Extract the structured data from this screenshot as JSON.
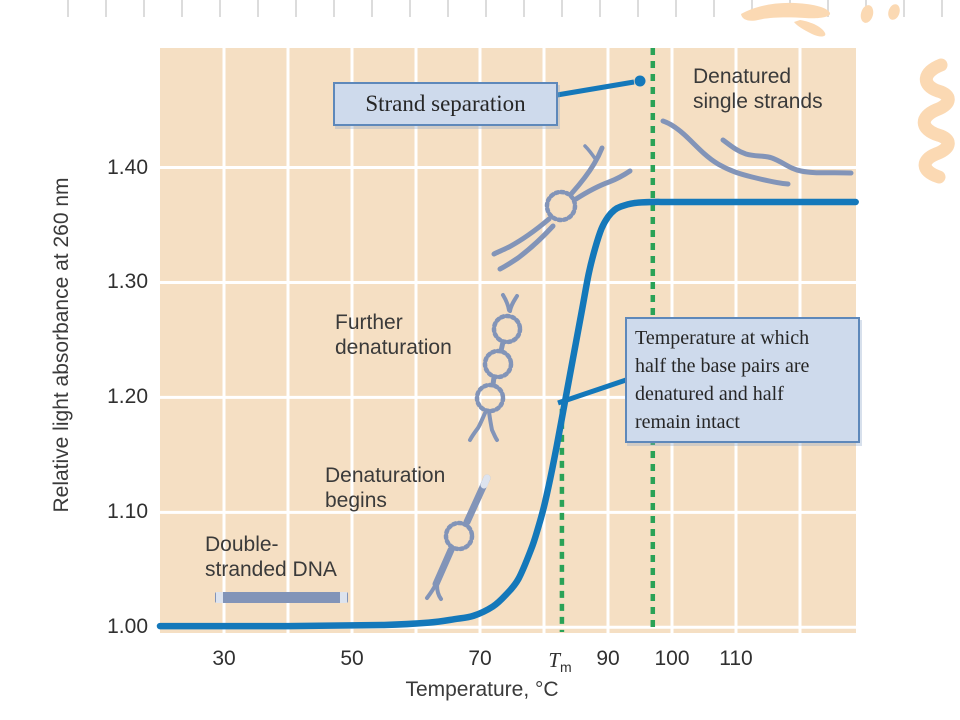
{
  "figure": {
    "y_axis": {
      "label": "Relative light absorbance at 260 nm",
      "ticks": [
        "1.40",
        "1.30",
        "1.20",
        "1.10",
        "1.00"
      ]
    },
    "x_axis": {
      "label": "Temperature, °C",
      "ticks": [
        "30",
        "50",
        "70",
        "90",
        "100",
        "110"
      ],
      "tm_tick": {
        "base": "T",
        "sub": "m"
      }
    },
    "labels": {
      "double_stranded_dna": "Double-\nstranded DNA",
      "denaturation_begins": "Denaturation\nbegins",
      "further_denaturation": "Further\ndenaturation",
      "denatured_single_strands": "Denatured\nsingle strands"
    },
    "callouts": {
      "strand_separation": "Strand separation",
      "tm_explanation": "Temperature at which\nhalf the base pairs are\ndenatured and half\nremain intact"
    }
  },
  "colors": {
    "curve": "#1478ba",
    "green": "#2aa257",
    "beige": "#f5dfc3",
    "boxbg": "#cedaec",
    "boxborder": "#5e88ba",
    "mol": "#8294b8",
    "mollight": "#dde3ee",
    "wm": "#fbd9b3",
    "labeltext": "#3a3a3a",
    "ticktext": "#303030",
    "serif": "#262626"
  },
  "chart_data": {
    "type": "line",
    "xlabel": "Temperature, °C",
    "ylabel": "Relative light absorbance at 260 nm",
    "x_ticks": [
      30,
      50,
      70,
      90,
      100,
      110
    ],
    "tm_tick_x": 82.5,
    "y_ticks": [
      1.0,
      1.1,
      1.2,
      1.3,
      1.4
    ],
    "xlim": [
      20,
      128.75
    ],
    "ylim": [
      0.995,
      1.504
    ],
    "grid": true,
    "baseline_value": 1.0,
    "plateau_value": 1.37,
    "series": [
      {
        "name": "Relative light absorbance at 260 nm",
        "x": [
          20,
          40,
          55,
          62,
          66,
          69,
          72,
          74,
          76,
          78,
          79,
          80,
          81,
          82,
          83,
          84,
          85,
          86,
          87,
          88,
          89,
          90,
          91,
          92,
          94,
          97,
          100,
          110,
          128.7
        ],
        "y": [
          1.001,
          1.001,
          1.002,
          1.004,
          1.007,
          1.01,
          1.018,
          1.028,
          1.042,
          1.068,
          1.085,
          1.105,
          1.13,
          1.158,
          1.188,
          1.218,
          1.248,
          1.278,
          1.308,
          1.33,
          1.347,
          1.357,
          1.363,
          1.366,
          1.369,
          1.37,
          1.37,
          1.37,
          1.37
        ]
      }
    ],
    "tm_line": {
      "x": 82.8,
      "y_top": 1.19
    },
    "separation_line": {
      "x": 97
    },
    "annotations": [
      {
        "text": "Double-stranded DNA",
        "x": 33,
        "y": 1.055
      },
      {
        "text": "Denaturation begins",
        "x": 46,
        "y": 1.13
      },
      {
        "text": "Further denaturation",
        "x": 47.5,
        "y": 1.26
      },
      {
        "text": "Strand separation",
        "x": 55,
        "y": 1.45,
        "points_to_x": 97
      },
      {
        "text": "Denatured single strands",
        "x": 103,
        "y": 1.46
      },
      {
        "text": "Temperature at which half the base pairs are denatured and half remain intact",
        "x": 105,
        "y": 1.21,
        "points_to": "curve midpoint at Tm"
      }
    ]
  }
}
